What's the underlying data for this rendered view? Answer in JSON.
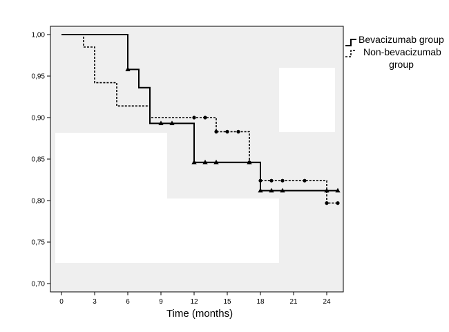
{
  "chart_data": {
    "type": "line",
    "subtype": "kaplan-meier-step",
    "title": "",
    "xlabel": "Time (months)",
    "ylabel": "",
    "xlim": [
      -1,
      25.5
    ],
    "ylim": [
      0.69,
      1.01
    ],
    "xticks": [
      0,
      3,
      6,
      9,
      12,
      15,
      18,
      21,
      24
    ],
    "xtick_labels": [
      "0",
      "3",
      "6",
      "9",
      "12",
      "15",
      "18",
      "21",
      "24"
    ],
    "yticks": [
      0.7,
      0.75,
      0.8,
      0.85,
      0.9,
      0.95,
      1.0
    ],
    "ytick_labels": [
      "0,70",
      "0,75",
      "0,80",
      "0,85",
      "0,90",
      "0,95",
      "1,00"
    ],
    "grid": false,
    "legend_position": "top-right, outside plot",
    "plot_background": "#efefef",
    "series": [
      {
        "name": "Bevacizumab group",
        "line_style": "solid",
        "marker": "triangle",
        "color": "#000000",
        "steps": [
          {
            "x": 0,
            "y": 1.0
          },
          {
            "x": 6,
            "y": 0.958
          },
          {
            "x": 7,
            "y": 0.936
          },
          {
            "x": 8,
            "y": 0.893
          },
          {
            "x": 12,
            "y": 0.846
          },
          {
            "x": 18,
            "y": 0.812
          },
          {
            "x": 25,
            "y": 0.812
          }
        ],
        "censored": [
          {
            "x": 6,
            "y": 0.958
          },
          {
            "x": 9,
            "y": 0.893
          },
          {
            "x": 10,
            "y": 0.893
          },
          {
            "x": 12,
            "y": 0.846
          },
          {
            "x": 13,
            "y": 0.846
          },
          {
            "x": 14,
            "y": 0.846
          },
          {
            "x": 17,
            "y": 0.846
          },
          {
            "x": 18,
            "y": 0.812
          },
          {
            "x": 19,
            "y": 0.812
          },
          {
            "x": 20,
            "y": 0.812
          },
          {
            "x": 24,
            "y": 0.812
          },
          {
            "x": 25,
            "y": 0.812
          }
        ]
      },
      {
        "name": "Non-bevacizumab group",
        "line_style": "dashed",
        "marker": "circle",
        "color": "#000000",
        "steps": [
          {
            "x": 0,
            "y": 1.0
          },
          {
            "x": 2,
            "y": 0.985
          },
          {
            "x": 3,
            "y": 0.942
          },
          {
            "x": 5,
            "y": 0.914
          },
          {
            "x": 8,
            "y": 0.9
          },
          {
            "x": 14,
            "y": 0.883
          },
          {
            "x": 17,
            "y": 0.846
          },
          {
            "x": 18,
            "y": 0.824
          },
          {
            "x": 24,
            "y": 0.797
          },
          {
            "x": 25,
            "y": 0.797
          }
        ],
        "censored": [
          {
            "x": 12,
            "y": 0.9
          },
          {
            "x": 13,
            "y": 0.9
          },
          {
            "x": 14,
            "y": 0.883
          },
          {
            "x": 15,
            "y": 0.883
          },
          {
            "x": 16,
            "y": 0.883
          },
          {
            "x": 17,
            "y": 0.846
          },
          {
            "x": 18,
            "y": 0.824
          },
          {
            "x": 19,
            "y": 0.824
          },
          {
            "x": 20,
            "y": 0.824
          },
          {
            "x": 22,
            "y": 0.824
          },
          {
            "x": 24,
            "y": 0.797
          },
          {
            "x": 25,
            "y": 0.797
          }
        ]
      }
    ]
  }
}
